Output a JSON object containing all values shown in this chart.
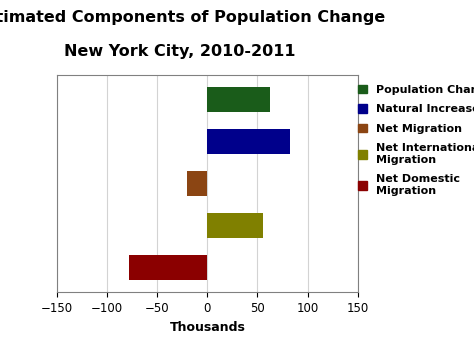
{
  "title_line1": "Estimated Components of Population Change",
  "title_line2": "New York City, 2010-2011",
  "legend_labels": [
    "Population Change",
    "Natural Increase",
    "Net Migration",
    "Net International\nMigration",
    "Net Domestic\nMigration"
  ],
  "values": [
    62,
    82,
    -20,
    55,
    -78
  ],
  "colors": [
    "#1a5c1a",
    "#00008B",
    "#8B4513",
    "#808000",
    "#8B0000"
  ],
  "xlim": [
    -150,
    150
  ],
  "xticks": [
    -150,
    -100,
    -50,
    0,
    50,
    100,
    150
  ],
  "xlabel": "Thousands",
  "title_fontsize": 11.5,
  "tick_fontsize": 8.5,
  "xlabel_fontsize": 9,
  "legend_fontsize": 8,
  "background_color": "#ffffff",
  "plot_bg": "#ffffff",
  "bar_height": 0.6
}
